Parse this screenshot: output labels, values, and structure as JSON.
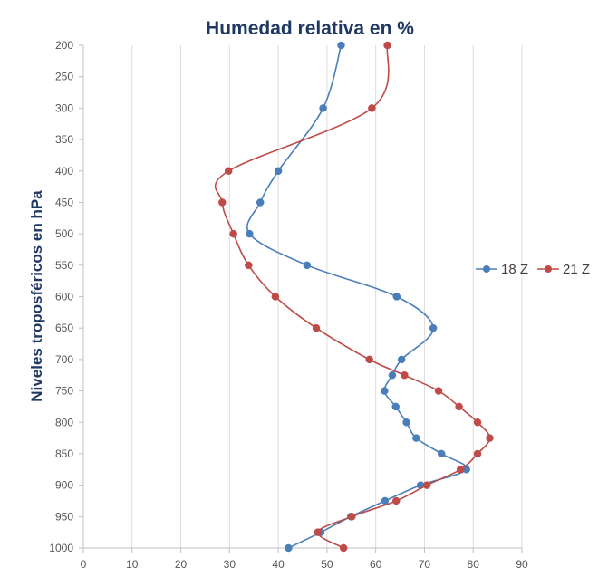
{
  "chart_data": {
    "type": "line",
    "title": "Humedad relativa en %",
    "xlabel": "",
    "ylabel": "Niveles troposféricos en hPa",
    "xlim": [
      0,
      90
    ],
    "ylim": [
      200,
      1000
    ],
    "y_inverted": true,
    "x_ticks": [
      "0",
      "10",
      "20",
      "30",
      "40",
      "50",
      "60",
      "70",
      "80",
      "90"
    ],
    "y_ticks": [
      "200",
      "250",
      "300",
      "350",
      "400",
      "450",
      "500",
      "550",
      "600",
      "650",
      "700",
      "750",
      "800",
      "850",
      "900",
      "950",
      "1000"
    ],
    "grid": "vertical",
    "legend_position": "right",
    "series": [
      {
        "name": "18 Z",
        "color": "#4a7ebb",
        "points": [
          [
            52.9,
            200
          ],
          [
            49.2,
            300
          ],
          [
            40.0,
            400
          ],
          [
            36.3,
            450
          ],
          [
            34.1,
            500
          ],
          [
            45.9,
            550
          ],
          [
            64.3,
            600
          ],
          [
            71.8,
            650
          ],
          [
            65.3,
            700
          ],
          [
            63.4,
            725
          ],
          [
            61.8,
            750
          ],
          [
            64.1,
            775
          ],
          [
            66.3,
            800
          ],
          [
            68.3,
            825
          ],
          [
            73.5,
            850
          ],
          [
            78.6,
            875
          ],
          [
            69.2,
            900
          ],
          [
            61.9,
            925
          ],
          [
            54.9,
            950
          ],
          [
            48.7,
            975
          ],
          [
            42.1,
            1000
          ]
        ]
      },
      {
        "name": "21 Z",
        "color": "#be4b48",
        "points": [
          [
            62.4,
            200
          ],
          [
            59.2,
            300
          ],
          [
            29.8,
            400
          ],
          [
            28.5,
            450
          ],
          [
            30.8,
            500
          ],
          [
            33.9,
            550
          ],
          [
            39.4,
            600
          ],
          [
            47.8,
            650
          ],
          [
            58.7,
            700
          ],
          [
            65.9,
            725
          ],
          [
            72.9,
            750
          ],
          [
            77.1,
            775
          ],
          [
            80.9,
            800
          ],
          [
            83.4,
            825
          ],
          [
            80.9,
            850
          ],
          [
            77.4,
            875
          ],
          [
            70.5,
            900
          ],
          [
            64.2,
            925
          ],
          [
            55.1,
            950
          ],
          [
            48.1,
            975
          ],
          [
            53.4,
            1000
          ]
        ]
      }
    ]
  }
}
